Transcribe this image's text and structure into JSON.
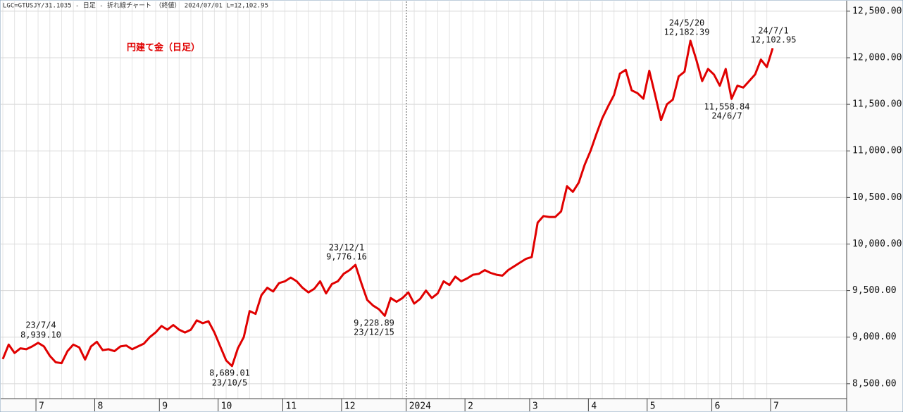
{
  "header": "LGC=GTUSJY/31.1035 - 日足 - 折れ線チャート （終値） 2024/07/01 L=12,102.95",
  "chart_data": {
    "type": "line",
    "title": "円建て金（日足）",
    "categories": [
      null,
      null,
      null,
      null,
      null,
      null,
      "7",
      null,
      null,
      null,
      null,
      null,
      null,
      null,
      null,
      null,
      "8",
      null,
      null,
      null,
      null,
      null,
      null,
      null,
      null,
      null,
      null,
      "9",
      null,
      null,
      null,
      null,
      null,
      null,
      null,
      null,
      null,
      "10",
      null,
      null,
      null,
      null,
      null,
      null,
      null,
      null,
      null,
      null,
      "11",
      null,
      null,
      null,
      null,
      null,
      null,
      null,
      null,
      null,
      "12",
      null,
      null,
      null,
      null,
      null,
      null,
      null,
      null,
      null,
      null,
      "2024",
      null,
      null,
      null,
      null,
      null,
      null,
      null,
      null,
      null,
      "2",
      null,
      null,
      null,
      null,
      null,
      null,
      null,
      null,
      null,
      null,
      "3",
      null,
      null,
      null,
      null,
      null,
      null,
      null,
      null,
      null,
      "4",
      null,
      null,
      null,
      null,
      null,
      null,
      null,
      null,
      null,
      "5",
      null,
      null,
      null,
      null,
      null,
      null,
      null,
      null,
      null,
      null,
      "6",
      null,
      null,
      null,
      null,
      null,
      null,
      null,
      null,
      null,
      "7"
    ],
    "series": [
      {
        "name": "円建て金",
        "color": "#e00000",
        "values": [
          8765,
          8920,
          8830,
          8880,
          8870,
          8900,
          8939,
          8900,
          8800,
          8730,
          8720,
          8850,
          8920,
          8890,
          8760,
          8900,
          8950,
          8860,
          8870,
          8850,
          8900,
          8910,
          8870,
          8900,
          8930,
          9000,
          9050,
          9120,
          9080,
          9130,
          9080,
          9050,
          9080,
          9180,
          9150,
          9170,
          9050,
          8900,
          8750,
          8689,
          8880,
          9000,
          9280,
          9250,
          9450,
          9530,
          9490,
          9580,
          9600,
          9640,
          9600,
          9530,
          9480,
          9520,
          9600,
          9470,
          9570,
          9600,
          9680,
          9720,
          9776,
          9580,
          9400,
          9340,
          9300,
          9229,
          9420,
          9380,
          9420,
          9480,
          9360,
          9410,
          9500,
          9420,
          9470,
          9600,
          9560,
          9650,
          9600,
          9630,
          9670,
          9680,
          9720,
          9690,
          9670,
          9660,
          9720,
          9760,
          9800,
          9840,
          9860,
          10230,
          10300,
          10290,
          10290,
          10350,
          10620,
          10560,
          10660,
          10850,
          11000,
          11180,
          11350,
          11480,
          11600,
          11830,
          11870,
          11650,
          11620,
          11560,
          11860,
          11600,
          11330,
          11500,
          11550,
          11800,
          11850,
          12182,
          11980,
          11750,
          11880,
          11820,
          11700,
          11880,
          11559,
          11700,
          11680,
          11750,
          11820,
          11980,
          11900,
          12103
        ]
      }
    ],
    "ylim": [
      8340,
      12605
    ],
    "yticks": [
      {
        "value": 8500,
        "label": "8,500.00"
      },
      {
        "value": 9000,
        "label": "9,000.00"
      },
      {
        "value": 9500,
        "label": "9,500.00"
      },
      {
        "value": 10000,
        "label": "10,000.00"
      },
      {
        "value": 10500,
        "label": "10,500.00"
      },
      {
        "value": 11000,
        "label": "11,000.00"
      },
      {
        "value": 11500,
        "label": "11,500.00"
      },
      {
        "value": 12000,
        "label": "12,000.00"
      },
      {
        "value": 12500,
        "label": "12,500.00"
      }
    ],
    "grid": true,
    "annotations": [
      {
        "date": "23/7/4",
        "value": "8,939.10"
      },
      {
        "value": "8,689.01",
        "date": "23/10/5"
      },
      {
        "date": "23/12/1",
        "value": "9,776.16"
      },
      {
        "value": "9,228.89",
        "date": "23/12/15"
      },
      {
        "date": "24/5/20",
        "value": "12,182.39"
      },
      {
        "value": "11,558.84",
        "date": "24/6/7"
      },
      {
        "date": "24/7/1",
        "value": "12,102.95"
      }
    ]
  }
}
